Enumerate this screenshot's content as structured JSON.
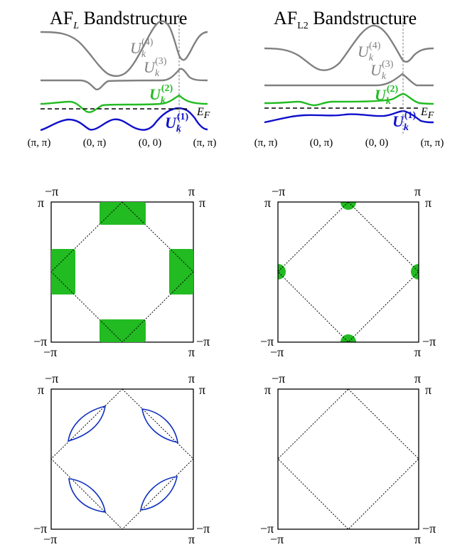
{
  "panels": [
    {
      "title_main": "AF",
      "title_sub": "L",
      "title_rest": " Bandstructure",
      "kpath_labels": [
        "(π, π)",
        "(0, π)",
        "(0, 0)",
        "(π, π)"
      ],
      "bands": [
        {
          "label": "U",
          "sub": "k",
          "sup": "(4)",
          "color": "#808080"
        },
        {
          "label": "U",
          "sub": "k",
          "sup": "(3)",
          "color": "#808080"
        },
        {
          "label": "U",
          "sub": "k",
          "sup": "(2)",
          "color": "#22bb22"
        },
        {
          "label": "U",
          "sub": "k",
          "sup": "(1)",
          "color": "#1010cc"
        }
      ],
      "fermi_label": "E",
      "fermi_sub": "F"
    },
    {
      "title_main": "AF",
      "title_sub": "L2",
      "title_rest": " Bandstructure",
      "kpath_labels": [
        "(π, π)",
        "(0, π)",
        "(0, 0)",
        "(π, π)"
      ],
      "bands": [
        {
          "label": "U",
          "sub": "k",
          "sup": "(4)",
          "color": "#808080"
        },
        {
          "label": "U",
          "sub": "k",
          "sup": "(3)",
          "color": "#808080"
        },
        {
          "label": "U",
          "sub": "k",
          "sup": "(2)",
          "color": "#22bb22"
        },
        {
          "label": "U",
          "sub": "k",
          "sup": "(1)",
          "color": "#1010cc"
        }
      ],
      "fermi_label": "E",
      "fermi_sub": "F"
    }
  ],
  "bz_labels": {
    "top_left_outer": "π",
    "top_left_inner": "−π",
    "top_right_inner": "π",
    "top_right_outer": "π",
    "bottom_left_outer": "−π",
    "bottom_left_inner": "−π",
    "bottom_right_inner": "π",
    "bottom_right_outer": "−π"
  },
  "colors": {
    "pocket_green": "#22bb22",
    "contour_blue": "#1030c0",
    "gray_band": "#808080",
    "green_band": "#22bb22",
    "blue_band": "#1010cc"
  }
}
